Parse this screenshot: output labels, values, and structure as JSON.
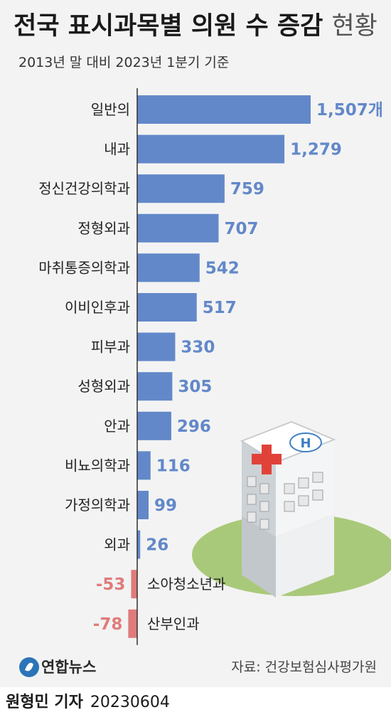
{
  "header": {
    "title_bold": "전국 표시과목별 의원 수 증감",
    "title_light": "현황",
    "subtitle": "2013년 말 대비 2023년 1분기 기준"
  },
  "chart_data": {
    "type": "bar",
    "orientation": "horizontal",
    "title": "전국 표시과목별 의원 수 증감 현황",
    "subtitle": "2013년 말 대비 2023년 1분기 기준",
    "unit": "개",
    "categories": [
      "일반의",
      "내과",
      "정신건강의학과",
      "정형외과",
      "마취통증의학과",
      "이비인후과",
      "피부과",
      "성형외과",
      "안과",
      "비뇨의학과",
      "가정의학과",
      "외과",
      "소아청소년과",
      "산부인과"
    ],
    "values": [
      1507,
      1279,
      759,
      707,
      542,
      517,
      330,
      305,
      296,
      116,
      99,
      26,
      -53,
      -78
    ],
    "value_labels": [
      "1,507개",
      "1,279",
      "759",
      "707",
      "542",
      "517",
      "330",
      "305",
      "296",
      "116",
      "99",
      "26",
      "-53",
      "-78"
    ],
    "colors": {
      "positive": "#6288c9",
      "negative": "#e07b7b",
      "axis": "#333333"
    },
    "grid": false,
    "legend": "none"
  },
  "illustration": {
    "icon": "hospital-building-icon",
    "sign": "H"
  },
  "footer": {
    "logo_text": "연합뉴스",
    "source": "자료: 건강보험심사평가원"
  },
  "byline": {
    "reporter": "원형민 기자",
    "date": "20230604"
  }
}
